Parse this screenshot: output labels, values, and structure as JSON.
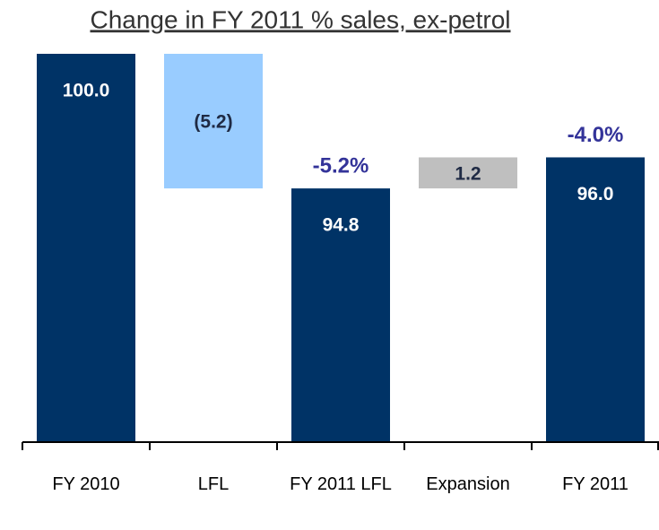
{
  "chart_data": {
    "type": "waterfall",
    "title": "Change in FY 2011 % sales, ex-petrol",
    "categories": [
      "FY 2010",
      "LFL",
      "FY 2011 LFL",
      "Expansion",
      "FY 2011"
    ],
    "values": [
      100.0,
      -5.2,
      94.8,
      1.2,
      96.0
    ],
    "value_labels": [
      "100.0",
      "(5.2)",
      "94.8",
      "1.2",
      "96.0"
    ],
    "is_total": [
      true,
      false,
      true,
      false,
      true
    ],
    "colors": [
      "#003366",
      "#99ccff",
      "#003366",
      "#bfbfbf",
      "#003366"
    ],
    "annotations": [
      {
        "text": "-5.2%",
        "index": 2
      },
      {
        "text": "-4.0%",
        "index": 4
      }
    ],
    "ylim": [
      85,
      100
    ]
  }
}
